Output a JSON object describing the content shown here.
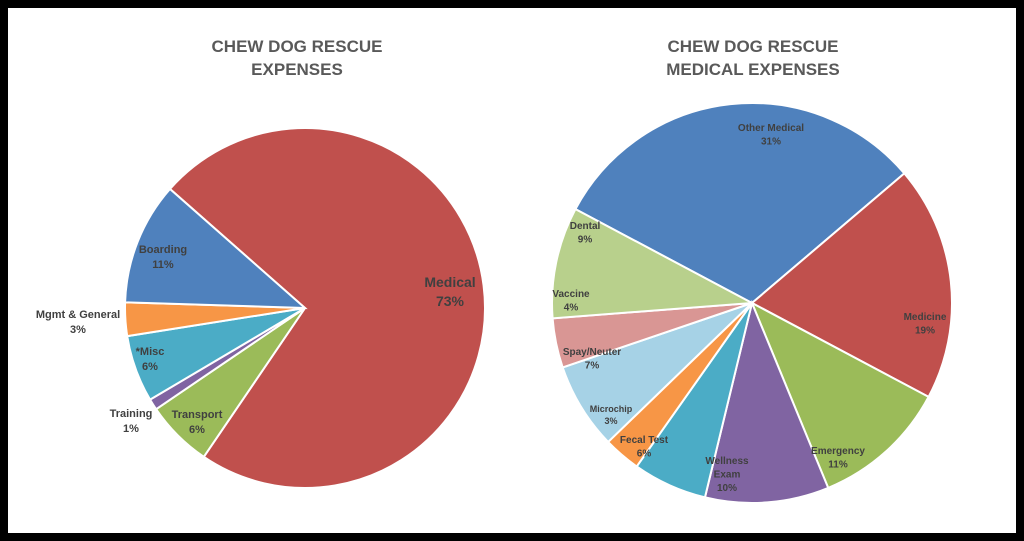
{
  "chart_data": [
    {
      "type": "pie",
      "title": "CHEW DOG RESCUE\nEXPENSES",
      "slices": [
        {
          "label": "Medical",
          "value": 73,
          "display": "73%",
          "color": "#C0504D"
        },
        {
          "label": "Transport",
          "value": 6,
          "display": "6%",
          "color": "#9BBB59"
        },
        {
          "label": "Training",
          "value": 1,
          "display": "1%",
          "color": "#8064A2"
        },
        {
          "label": "*Misc",
          "value": 6,
          "display": "6%",
          "color": "#4BACC6"
        },
        {
          "label": "Mgmt & General",
          "value": 3,
          "display": "3%",
          "color": "#F79646"
        },
        {
          "label": "Boarding",
          "value": 11,
          "display": "11%",
          "color": "#4F81BD"
        }
      ]
    },
    {
      "type": "pie",
      "title": "CHEW DOG RESCUE\nMEDICAL EXPENSES",
      "slices": [
        {
          "label": "Other Medical",
          "value": 31,
          "display": "31%",
          "color": "#4F81BD"
        },
        {
          "label": "Medicine",
          "value": 19,
          "display": "19%",
          "color": "#C0504D"
        },
        {
          "label": "Emergency",
          "value": 11,
          "display": "11%",
          "color": "#9BBB59"
        },
        {
          "label": "Wellness Exam",
          "value": 10,
          "display": "10%",
          "color": "#8064A2"
        },
        {
          "label": "Fecal Test",
          "value": 6,
          "display": "6%",
          "color": "#4BACC6"
        },
        {
          "label": "Microchip",
          "value": 3,
          "display": "3%",
          "color": "#F79646"
        },
        {
          "label": "Spay/Neuter",
          "value": 7,
          "display": "7%",
          "color": "#A6D2E6"
        },
        {
          "label": "Vaccine",
          "value": 4,
          "display": "4%",
          "color": "#D99694"
        },
        {
          "label": "Dental",
          "value": 9,
          "display": "9%",
          "color": "#B8D08C"
        }
      ]
    }
  ]
}
